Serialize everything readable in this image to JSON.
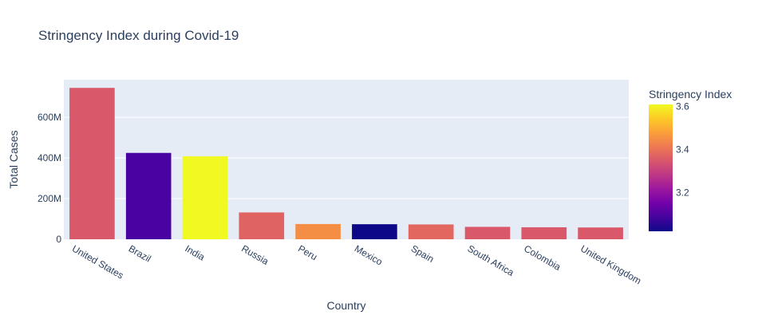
{
  "chart_data": {
    "type": "bar",
    "title": "Stringency Index during Covid-19",
    "xlabel": "Country",
    "ylabel": "Total Cases",
    "categories": [
      "United States",
      "Brazil",
      "India",
      "Russia",
      "Peru",
      "Mexico",
      "Spain",
      "South Africa",
      "Colombia",
      "United Kingdom"
    ],
    "values": [
      745000000,
      425000000,
      408000000,
      132000000,
      75000000,
      74000000,
      73000000,
      61000000,
      59000000,
      58000000
    ],
    "stringency": [
      3.35,
      3.09,
      3.61,
      3.37,
      3.45,
      3.02,
      3.38,
      3.35,
      3.35,
      3.35
    ],
    "ylim": [
      0,
      785000000
    ],
    "yticks": [
      {
        "value": 0,
        "label": "0"
      },
      {
        "value": 200000000,
        "label": "200M"
      },
      {
        "value": 400000000,
        "label": "400M"
      },
      {
        "value": 600000000,
        "label": "600M"
      }
    ],
    "colorbar": {
      "title": "Stringency Index",
      "range": [
        3.02,
        3.61
      ],
      "ticks": [
        {
          "value": 3.2,
          "label": "3.2"
        },
        {
          "value": 3.4,
          "label": "3.4"
        },
        {
          "value": 3.6,
          "label": "3.6"
        }
      ],
      "colorscale": [
        "#0d0887",
        "#46039f",
        "#7201a8",
        "#9c179e",
        "#bd3786",
        "#d8576b",
        "#ed7953",
        "#fb9f3a",
        "#fdca26",
        "#f0f921"
      ]
    },
    "grid": true,
    "plot_bg": "#e5ecf6",
    "legend": "right"
  }
}
